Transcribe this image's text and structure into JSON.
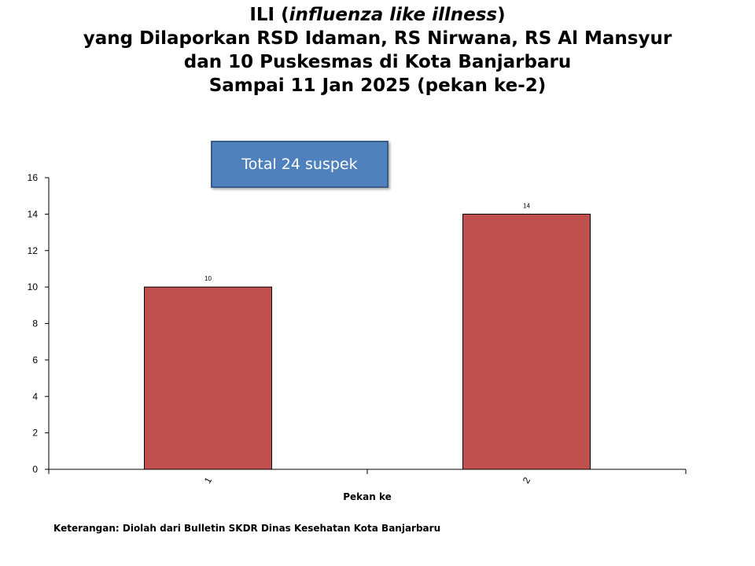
{
  "title": {
    "line1_pre": "ILI (",
    "line1_italic": "influenza like illness",
    "line1_post": ")",
    "line2": "yang Dilaporkan RSD Idaman, RS Nirwana, RS Al Mansyur",
    "line3": "dan 10 Puskesmas di Kota Banjarbaru",
    "line4": "Sampai 11 Jan 2025 (pekan ke-2)"
  },
  "callout": {
    "text": "Total 24 suspek"
  },
  "footnote": "Keterangan: Diolah dari Bulletin SKDR Dinas Kesehatan Kota Banjarbaru",
  "colors": {
    "bar": "#c0504d",
    "callout": "#4f81bd"
  },
  "chart_data": {
    "type": "bar",
    "categories": [
      "1",
      "2"
    ],
    "values": [
      10,
      14
    ],
    "data_labels": [
      "10",
      "14"
    ],
    "xlabel": "Pekan ke",
    "ylabel": "",
    "ylim": [
      0,
      16
    ],
    "yticks": [
      "0",
      "2",
      "4",
      "6",
      "8",
      "10",
      "12",
      "14",
      "16"
    ],
    "grid": false,
    "legend": "none"
  }
}
